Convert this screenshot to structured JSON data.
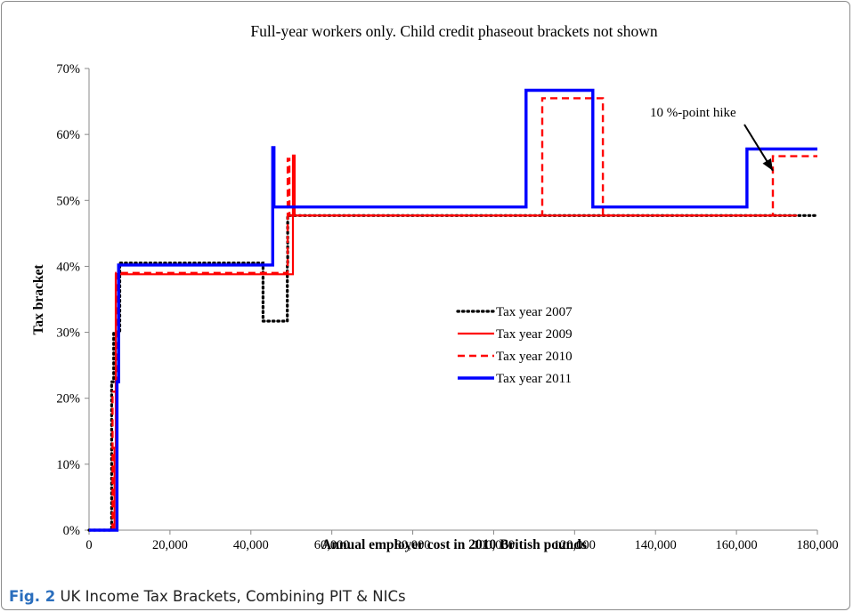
{
  "chart_data": {
    "type": "line",
    "step": true,
    "title": "Full-year workers only.  Child credit phaseout brackets not shown",
    "xlabel": "Annual employer cost in 2010 British pounds",
    "ylabel": "Tax bracket",
    "xlim": [
      0,
      180000
    ],
    "ylim": [
      0,
      0.7
    ],
    "x_ticks": [
      0,
      20000,
      40000,
      60000,
      80000,
      100000,
      120000,
      140000,
      160000,
      180000
    ],
    "x_tick_labels": [
      "0",
      "20,000",
      "40,000",
      "60,000",
      "80,000",
      "100,000",
      "120,000",
      "140,000",
      "160,000",
      "180,000"
    ],
    "y_ticks": [
      0,
      0.1,
      0.2,
      0.3,
      0.4,
      0.5,
      0.6,
      0.7
    ],
    "y_tick_labels": [
      "0%",
      "10%",
      "20%",
      "30%",
      "40%",
      "50%",
      "60%",
      "70%"
    ],
    "grid": false,
    "legend_position": "center-right",
    "annotation": {
      "text": "10 %-point hike",
      "arrow_to": [
        169000,
        0.545
      ]
    },
    "series": [
      {
        "name": "Tax year 2007",
        "color": "#000000",
        "dash": "dotted",
        "points": [
          [
            0,
            0
          ],
          [
            5600,
            0
          ],
          [
            5600,
            0.225
          ],
          [
            6100,
            0.225
          ],
          [
            6100,
            0.3
          ],
          [
            7600,
            0.3
          ],
          [
            7600,
            0.405
          ],
          [
            43000,
            0.405
          ],
          [
            43000,
            0.317
          ],
          [
            49000,
            0.317
          ],
          [
            49000,
            0.405
          ],
          [
            49100,
            0.405
          ],
          [
            49100,
            0.477
          ],
          [
            180000,
            0.477
          ]
        ]
      },
      {
        "name": "Tax year 2009",
        "color": "#ff0000",
        "dash": "solid",
        "points": [
          [
            0,
            0
          ],
          [
            6300,
            0
          ],
          [
            6300,
            0.125
          ],
          [
            6600,
            0.125
          ],
          [
            6600,
            0.388
          ],
          [
            50400,
            0.388
          ],
          [
            50400,
            0.568
          ],
          [
            50800,
            0.568
          ],
          [
            50800,
            0.477
          ],
          [
            175000,
            0.477
          ]
        ]
      },
      {
        "name": "Tax year 2010",
        "color": "#ff0000",
        "dash": "dashed",
        "points": [
          [
            0,
            0
          ],
          [
            5800,
            0
          ],
          [
            5800,
            0.21
          ],
          [
            6700,
            0.21
          ],
          [
            6700,
            0.39
          ],
          [
            49100,
            0.39
          ],
          [
            49100,
            0.563
          ],
          [
            49500,
            0.563
          ],
          [
            49500,
            0.477
          ],
          [
            112000,
            0.477
          ],
          [
            112000,
            0.655
          ],
          [
            127000,
            0.655
          ],
          [
            127000,
            0.477
          ],
          [
            169000,
            0.477
          ],
          [
            169000,
            0.567
          ],
          [
            180000,
            0.567
          ]
        ]
      },
      {
        "name": "Tax year 2011",
        "color": "#0000ff",
        "dash": "solid",
        "points": [
          [
            0,
            0
          ],
          [
            6900,
            0
          ],
          [
            6900,
            0.225
          ],
          [
            7300,
            0.225
          ],
          [
            7300,
            0.402
          ],
          [
            45400,
            0.402
          ],
          [
            45400,
            0.58
          ],
          [
            45700,
            0.58
          ],
          [
            45700,
            0.49
          ],
          [
            108000,
            0.49
          ],
          [
            108000,
            0.667
          ],
          [
            124500,
            0.667
          ],
          [
            124500,
            0.49
          ],
          [
            162600,
            0.49
          ],
          [
            162600,
            0.578
          ],
          [
            180000,
            0.578
          ]
        ]
      }
    ]
  },
  "figure": {
    "caption_label": "Fig. 2",
    "caption_text": "UK Income Tax Brackets, Combining PIT & NICs"
  }
}
